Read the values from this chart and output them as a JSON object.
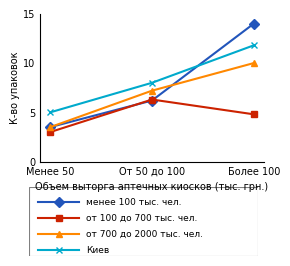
{
  "x_labels": [
    "Менее 50",
    "От 50 до 100",
    "Более 100"
  ],
  "x_positions": [
    0,
    1,
    2
  ],
  "series": [
    {
      "label": "менее 100 тыс. чел.",
      "values": [
        3.5,
        6.2,
        14.0
      ],
      "color": "#2255bb",
      "marker": "D",
      "marker_size": 5,
      "linewidth": 1.5
    },
    {
      "label": "от 100 до 700 тыс. чел.",
      "values": [
        3.0,
        6.3,
        4.8
      ],
      "color": "#cc2200",
      "marker": "s",
      "marker_size": 5,
      "linewidth": 1.5
    },
    {
      "label": "от 700 до 2000 тыс. чел.",
      "values": [
        3.5,
        7.2,
        10.0
      ],
      "color": "#ff8800",
      "marker": "^",
      "marker_size": 5,
      "linewidth": 1.5
    },
    {
      "label": "Киев",
      "values": [
        5.0,
        8.0,
        11.8
      ],
      "color": "#00aacc",
      "marker": "x",
      "marker_size": 5,
      "linewidth": 1.5
    }
  ],
  "ylabel": "К-во упаковок",
  "xlabel": "Объем выторга аптечных киосков (тыс. грн.)",
  "ylim": [
    0,
    15
  ],
  "yticks": [
    0,
    5,
    10,
    15
  ],
  "legend_fontsize": 6.5,
  "axis_fontsize": 7,
  "tick_fontsize": 7,
  "xlabel_fontsize": 7
}
